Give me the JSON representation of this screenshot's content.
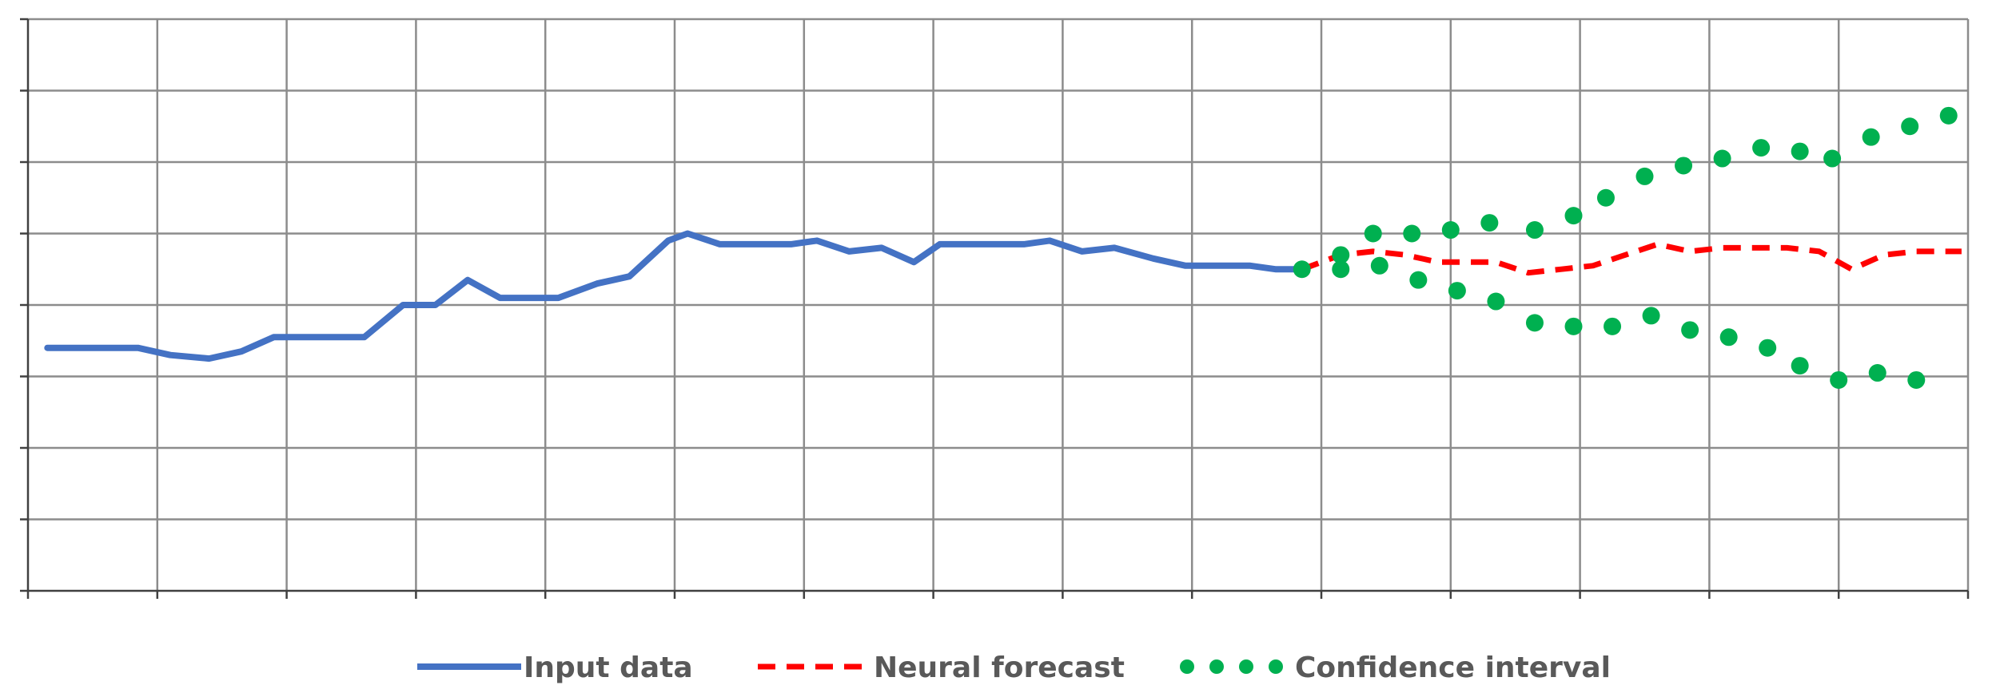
{
  "chart_data": {
    "type": "line",
    "title": "",
    "xlabel": "",
    "ylabel": "",
    "x_count": 15,
    "y_divisions": 8,
    "xlim": [
      0,
      15
    ],
    "ylim": [
      0,
      8
    ],
    "grid": true,
    "legend_position": "bottom",
    "series": [
      {
        "name": "Input data",
        "style": "solid",
        "color": "#4472C4",
        "points": [
          [
            0.15,
            3.4
          ],
          [
            0.85,
            3.4
          ],
          [
            1.1,
            3.3
          ],
          [
            1.4,
            3.25
          ],
          [
            1.65,
            3.35
          ],
          [
            1.9,
            3.55
          ],
          [
            2.6,
            3.55
          ],
          [
            2.9,
            4.0
          ],
          [
            3.15,
            4.0
          ],
          [
            3.4,
            4.35
          ],
          [
            3.65,
            4.1
          ],
          [
            4.1,
            4.1
          ],
          [
            4.4,
            4.3
          ],
          [
            4.65,
            4.4
          ],
          [
            4.95,
            4.9
          ],
          [
            5.1,
            5.0
          ],
          [
            5.35,
            4.85
          ],
          [
            5.9,
            4.85
          ],
          [
            6.1,
            4.9
          ],
          [
            6.35,
            4.75
          ],
          [
            6.6,
            4.8
          ],
          [
            6.85,
            4.6
          ],
          [
            7.05,
            4.85
          ],
          [
            7.7,
            4.85
          ],
          [
            7.9,
            4.9
          ],
          [
            8.15,
            4.75
          ],
          [
            8.4,
            4.8
          ],
          [
            8.7,
            4.65
          ],
          [
            8.95,
            4.55
          ],
          [
            9.45,
            4.55
          ],
          [
            9.65,
            4.5
          ],
          [
            9.85,
            4.5
          ]
        ]
      },
      {
        "name": "Neural forecast",
        "style": "dashed",
        "color": "#FF0000",
        "points": [
          [
            9.85,
            4.5
          ],
          [
            10.15,
            4.7
          ],
          [
            10.4,
            4.75
          ],
          [
            10.65,
            4.7
          ],
          [
            10.9,
            4.6
          ],
          [
            11.1,
            4.6
          ],
          [
            11.35,
            4.6
          ],
          [
            11.6,
            4.45
          ],
          [
            11.85,
            4.5
          ],
          [
            12.1,
            4.55
          ],
          [
            12.35,
            4.7
          ],
          [
            12.6,
            4.85
          ],
          [
            12.85,
            4.75
          ],
          [
            13.1,
            4.8
          ],
          [
            13.35,
            4.8
          ],
          [
            13.6,
            4.8
          ],
          [
            13.85,
            4.75
          ],
          [
            14.1,
            4.5
          ],
          [
            14.35,
            4.7
          ],
          [
            14.6,
            4.75
          ],
          [
            14.95,
            4.75
          ]
        ]
      },
      {
        "name": "Confidence interval",
        "style": "dotted",
        "color": "#00B050",
        "upper": [
          [
            9.85,
            4.5
          ],
          [
            10.15,
            4.7
          ],
          [
            10.4,
            5.0
          ],
          [
            10.7,
            5.0
          ],
          [
            11.0,
            5.05
          ],
          [
            11.3,
            5.15
          ],
          [
            11.65,
            5.05
          ],
          [
            11.95,
            5.25
          ],
          [
            12.2,
            5.5
          ],
          [
            12.5,
            5.8
          ],
          [
            12.8,
            5.95
          ],
          [
            13.1,
            6.05
          ],
          [
            13.4,
            6.2
          ],
          [
            13.7,
            6.15
          ],
          [
            13.95,
            6.05
          ],
          [
            14.25,
            6.35
          ],
          [
            14.55,
            6.5
          ],
          [
            14.85,
            6.65
          ]
        ],
        "lower": [
          [
            10.15,
            4.5
          ],
          [
            10.45,
            4.55
          ],
          [
            10.75,
            4.35
          ],
          [
            11.05,
            4.2
          ],
          [
            11.35,
            4.05
          ],
          [
            11.65,
            3.75
          ],
          [
            11.95,
            3.7
          ],
          [
            12.25,
            3.7
          ],
          [
            12.55,
            3.85
          ],
          [
            12.85,
            3.65
          ],
          [
            13.15,
            3.55
          ],
          [
            13.45,
            3.4
          ],
          [
            13.7,
            3.15
          ],
          [
            14.0,
            2.95
          ],
          [
            14.3,
            3.05
          ],
          [
            14.6,
            2.95
          ]
        ]
      }
    ],
    "legend": [
      {
        "label": "Input data",
        "style": "solid",
        "color": "#4472C4"
      },
      {
        "label": "Neural forecast",
        "style": "dashed",
        "color": "#FF0000"
      },
      {
        "label": "Confidence interval",
        "style": "dotted",
        "color": "#00B050"
      }
    ]
  }
}
